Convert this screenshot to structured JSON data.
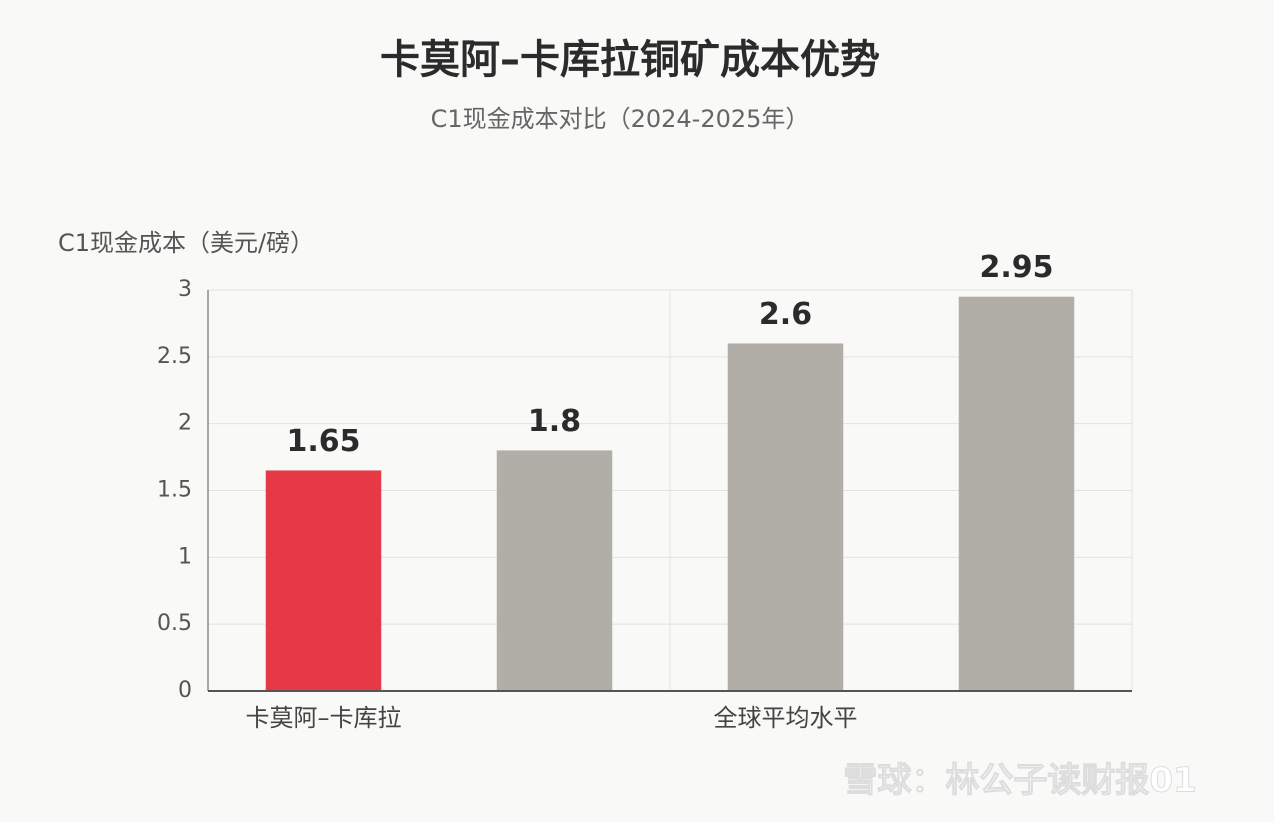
{
  "chart_data": {
    "type": "bar",
    "title": "卡莫阿–卡库拉铜矿成本优势",
    "subtitle": "C1现金成本对比（2024-2025年）",
    "y_label": "C1现金成本（美元/磅）",
    "categories": [
      "卡莫阿–卡库拉",
      null,
      "全球平均水平",
      null
    ],
    "values": [
      1.65,
      1.8,
      2.6,
      2.95
    ],
    "colors": [
      "#e63946",
      "#b0aea6",
      "#b0aea6",
      "#b0aea6"
    ],
    "ylim": [
      0,
      3
    ],
    "yticks": [
      0,
      0.5,
      1,
      1.5,
      2,
      2.5,
      3
    ],
    "grid": true,
    "watermark": "雪球：林公子读财报01"
  }
}
